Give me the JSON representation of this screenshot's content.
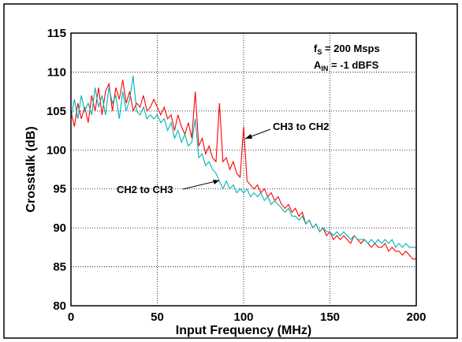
{
  "chart_data": {
    "type": "line",
    "xlabel": "Input Frequency (MHz)",
    "ylabel": "Crosstalk (dB)",
    "annotations": [
      {
        "main": "f",
        "sub": "S",
        "rest": " = 200 Msps"
      },
      {
        "main": "A",
        "sub": "IN",
        "rest": " = -1 dBFS"
      }
    ],
    "xlim": [
      0,
      200
    ],
    "xticks": [
      0,
      50,
      100,
      150,
      200
    ],
    "ylim": [
      80,
      115
    ],
    "yticks": [
      80,
      85,
      90,
      95,
      100,
      105,
      110,
      115
    ],
    "grid": true,
    "x": [
      0,
      2,
      4,
      6,
      8,
      10,
      12,
      14,
      16,
      18,
      20,
      22,
      24,
      26,
      28,
      30,
      32,
      34,
      36,
      38,
      40,
      42,
      44,
      46,
      48,
      50,
      52,
      54,
      56,
      58,
      60,
      62,
      64,
      66,
      68,
      70,
      72,
      74,
      76,
      78,
      80,
      82,
      84,
      86,
      88,
      90,
      92,
      94,
      96,
      98,
      100,
      102,
      104,
      106,
      108,
      110,
      112,
      114,
      116,
      118,
      120,
      122,
      124,
      126,
      128,
      130,
      132,
      134,
      136,
      138,
      140,
      142,
      144,
      146,
      148,
      150,
      152,
      154,
      156,
      158,
      160,
      162,
      164,
      166,
      168,
      170,
      172,
      174,
      176,
      178,
      180,
      182,
      184,
      186,
      188,
      190,
      192,
      194,
      196,
      198,
      200
    ],
    "series": [
      {
        "name": "CH3 to CH2",
        "color": "#ff0000",
        "values": [
          105,
          103,
          106,
          104,
          105.5,
          103.5,
          107,
          105,
          108,
          104.5,
          107.5,
          108.5,
          105,
          108,
          106.5,
          109,
          106,
          107.5,
          105,
          106,
          105.5,
          107,
          105,
          105.5,
          106.5,
          105.5,
          104.5,
          105.5,
          104,
          104.5,
          102.5,
          104.5,
          103,
          102,
          103.5,
          101.5,
          107.5,
          100.5,
          101.5,
          99.5,
          100.5,
          99,
          98.5,
          106,
          98.5,
          99,
          97.5,
          98.5,
          97,
          96.5,
          103,
          96,
          95.5,
          95,
          95.5,
          94.5,
          95,
          94,
          94.5,
          93.5,
          94,
          93,
          92.5,
          93,
          92,
          92.5,
          91.5,
          92,
          90.5,
          91,
          90,
          90.5,
          89.5,
          90,
          89,
          89.5,
          88.5,
          89,
          88.5,
          89,
          88.5,
          88,
          89,
          88.5,
          88,
          88.5,
          88,
          87.5,
          88,
          87.5,
          87.5,
          88,
          87,
          87.5,
          87,
          87,
          86.5,
          87,
          86.5,
          86,
          86
        ]
      },
      {
        "name": "CH2 to CH3",
        "color": "#00b4b4",
        "values": [
          104,
          106.5,
          104,
          107,
          105,
          106,
          104.5,
          108,
          105.5,
          107,
          104.5,
          108,
          106,
          107,
          104,
          107.5,
          105,
          106.5,
          109.5,
          105,
          104.5,
          105.5,
          104,
          104.5,
          104,
          104.5,
          103.5,
          104,
          102.5,
          103.5,
          101.5,
          102.5,
          101,
          102,
          100.5,
          101,
          104,
          99,
          99.5,
          98,
          98.5,
          97.5,
          97,
          96,
          95,
          96,
          95,
          95.5,
          94.5,
          95,
          94.5,
          95,
          94,
          94.5,
          94,
          94.5,
          93.5,
          94,
          93,
          93.5,
          93,
          92.5,
          92,
          92.5,
          91.5,
          91.5,
          91,
          91.5,
          90.5,
          91,
          90,
          90.5,
          89.5,
          90,
          89.5,
          89.5,
          89,
          89.5,
          89,
          89.5,
          89,
          88.5,
          89,
          88.5,
          88.5,
          88.5,
          88,
          88.5,
          88,
          88.5,
          88,
          88.5,
          88,
          88.5,
          87.5,
          88,
          87.5,
          88,
          87.5,
          87.5,
          87.5
        ]
      }
    ]
  }
}
